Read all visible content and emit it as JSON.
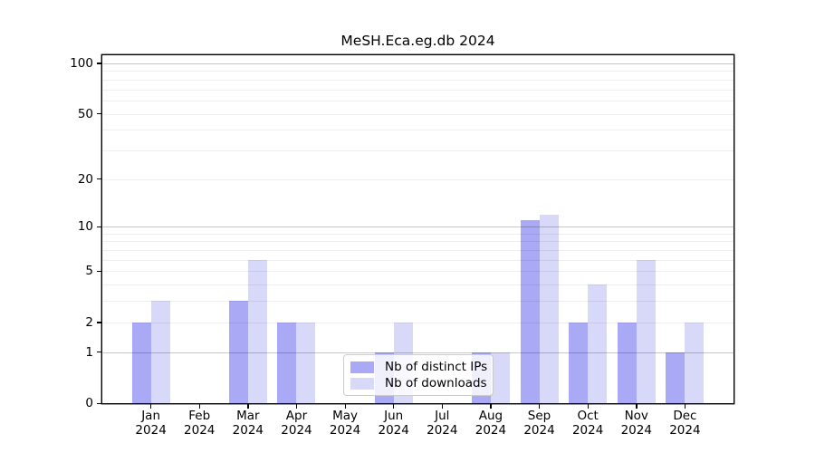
{
  "chart_data": {
    "type": "bar",
    "title": "MeSH.Eca.eg.db 2024",
    "x_months": [
      "Jan",
      "Feb",
      "Mar",
      "Apr",
      "May",
      "Jun",
      "Jul",
      "Aug",
      "Sep",
      "Oct",
      "Nov",
      "Dec"
    ],
    "x_year": "2024",
    "series": [
      {
        "name": "Nb of distinct IPs",
        "color": "#a9a9f5",
        "values": [
          2,
          0,
          3,
          2,
          0,
          1,
          0,
          1,
          11,
          2,
          2,
          1
        ]
      },
      {
        "name": "Nb of downloads",
        "color": "#d8d8f8",
        "values": [
          3,
          0,
          6,
          2,
          0,
          2,
          0,
          1,
          12,
          4,
          6,
          2
        ]
      }
    ],
    "y_scale": "log10(value+1)",
    "y_ticks": [
      0,
      1,
      2,
      5,
      10,
      20,
      50,
      100
    ],
    "y_major_gridlines": [
      1,
      10,
      100
    ],
    "y_minor_gridlines": [
      2,
      3,
      4,
      5,
      6,
      7,
      8,
      9,
      20,
      30,
      40,
      50,
      60,
      70,
      80,
      90
    ],
    "ylim": [
      0,
      110
    ],
    "grid": true,
    "legend_position": "inside-bottom-center",
    "spine_color": "#000000",
    "background_color": "#ffffff"
  }
}
